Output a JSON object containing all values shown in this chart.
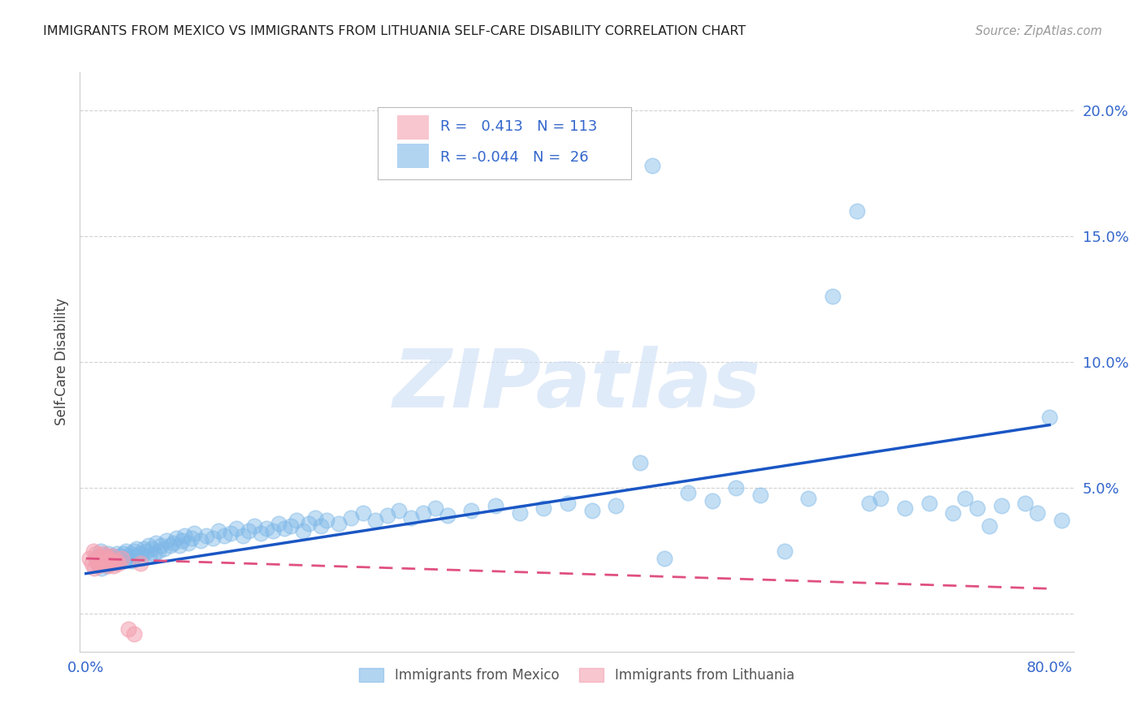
{
  "title": "IMMIGRANTS FROM MEXICO VS IMMIGRANTS FROM LITHUANIA SELF-CARE DISABILITY CORRELATION CHART",
  "source": "Source: ZipAtlas.com",
  "ylabel": "Self-Care Disability",
  "xlim": [
    -0.005,
    0.82
  ],
  "ylim": [
    -0.015,
    0.215
  ],
  "yticks": [
    0.0,
    0.05,
    0.1,
    0.15,
    0.2
  ],
  "ytick_labels": [
    "",
    "5.0%",
    "10.0%",
    "15.0%",
    "20.0%"
  ],
  "xticks": [
    0.0,
    0.2,
    0.4,
    0.6,
    0.8
  ],
  "xtick_labels": [
    "0.0%",
    "",
    "",
    "",
    "80.0%"
  ],
  "mexico_R": 0.413,
  "mexico_N": 113,
  "lithuania_R": -0.044,
  "lithuania_N": 26,
  "mexico_color": "#7eb8e8",
  "mexico_edge_color": "#5a9fd4",
  "mexico_line_color": "#1a56c4",
  "lithuania_color": "#f4a0b0",
  "lithuania_edge_color": "#e07090",
  "lithuania_line_color": "#e05080",
  "watermark": "ZIPatlas",
  "background_color": "#ffffff",
  "grid_color": "#cccccc",
  "mexico_x": [
    0.008,
    0.01,
    0.012,
    0.013,
    0.015,
    0.016,
    0.017,
    0.018,
    0.019,
    0.02,
    0.021,
    0.022,
    0.024,
    0.025,
    0.026,
    0.027,
    0.028,
    0.03,
    0.031,
    0.032,
    0.033,
    0.035,
    0.036,
    0.037,
    0.038,
    0.04,
    0.041,
    0.042,
    0.045,
    0.046,
    0.048,
    0.05,
    0.052,
    0.053,
    0.055,
    0.057,
    0.058,
    0.06,
    0.062,
    0.065,
    0.067,
    0.07,
    0.072,
    0.075,
    0.078,
    0.08,
    0.082,
    0.085,
    0.088,
    0.09,
    0.095,
    0.1,
    0.105,
    0.11,
    0.115,
    0.12,
    0.125,
    0.13,
    0.135,
    0.14,
    0.145,
    0.15,
    0.155,
    0.16,
    0.165,
    0.17,
    0.175,
    0.18,
    0.185,
    0.19,
    0.195,
    0.2,
    0.21,
    0.22,
    0.23,
    0.24,
    0.25,
    0.26,
    0.27,
    0.28,
    0.29,
    0.3,
    0.32,
    0.34,
    0.36,
    0.38,
    0.4,
    0.42,
    0.44,
    0.46,
    0.47,
    0.48,
    0.5,
    0.52,
    0.54,
    0.56,
    0.58,
    0.6,
    0.62,
    0.64,
    0.65,
    0.66,
    0.68,
    0.7,
    0.72,
    0.73,
    0.74,
    0.75,
    0.76,
    0.78,
    0.79,
    0.8,
    0.81
  ],
  "mexico_y": [
    0.022,
    0.02,
    0.025,
    0.018,
    0.021,
    0.023,
    0.019,
    0.024,
    0.02,
    0.022,
    0.021,
    0.023,
    0.02,
    0.022,
    0.024,
    0.021,
    0.023,
    0.022,
    0.024,
    0.021,
    0.025,
    0.023,
    0.022,
    0.024,
    0.021,
    0.025,
    0.023,
    0.026,
    0.024,
    0.022,
    0.026,
    0.025,
    0.027,
    0.023,
    0.026,
    0.024,
    0.028,
    0.025,
    0.027,
    0.026,
    0.029,
    0.027,
    0.028,
    0.03,
    0.027,
    0.029,
    0.031,
    0.028,
    0.03,
    0.032,
    0.029,
    0.031,
    0.03,
    0.033,
    0.031,
    0.032,
    0.034,
    0.031,
    0.033,
    0.035,
    0.032,
    0.034,
    0.033,
    0.036,
    0.034,
    0.035,
    0.037,
    0.033,
    0.036,
    0.038,
    0.035,
    0.037,
    0.036,
    0.038,
    0.04,
    0.037,
    0.039,
    0.041,
    0.038,
    0.04,
    0.042,
    0.039,
    0.041,
    0.043,
    0.04,
    0.042,
    0.044,
    0.041,
    0.043,
    0.06,
    0.178,
    0.022,
    0.048,
    0.045,
    0.05,
    0.047,
    0.025,
    0.046,
    0.126,
    0.16,
    0.044,
    0.046,
    0.042,
    0.044,
    0.04,
    0.046,
    0.042,
    0.035,
    0.043,
    0.044,
    0.04,
    0.078,
    0.037
  ],
  "lithuania_x": [
    0.003,
    0.005,
    0.006,
    0.007,
    0.008,
    0.009,
    0.01,
    0.011,
    0.012,
    0.013,
    0.014,
    0.015,
    0.016,
    0.017,
    0.018,
    0.019,
    0.02,
    0.021,
    0.022,
    0.023,
    0.025,
    0.027,
    0.03,
    0.035,
    0.04,
    0.045
  ],
  "lithuania_y": [
    0.022,
    0.02,
    0.025,
    0.018,
    0.024,
    0.021,
    0.019,
    0.023,
    0.02,
    0.022,
    0.024,
    0.021,
    0.02,
    0.023,
    0.019,
    0.022,
    0.021,
    0.02,
    0.023,
    0.019,
    0.021,
    0.02,
    0.022,
    -0.006,
    -0.008,
    0.02
  ],
  "mex_line_x0": 0.0,
  "mex_line_x1": 0.8,
  "mex_line_y0": 0.016,
  "mex_line_y1": 0.075,
  "lith_line_x0": 0.0,
  "lith_line_x1": 0.8,
  "lith_line_y0": 0.022,
  "lith_line_y1": 0.01
}
